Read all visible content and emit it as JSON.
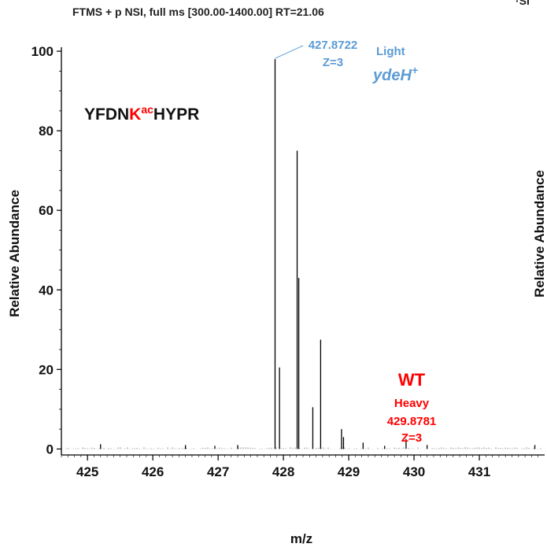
{
  "header": {
    "scan_info": "FTMS + p NSI, full ms [300.00-1400.00] RT=21.06",
    "corner_fragment": "·SI"
  },
  "peptide": {
    "prefix": "YFDN",
    "mod_residue": "K",
    "mod_superscript": "ac",
    "suffix": "HYPR"
  },
  "annotations": {
    "light_mz": "427.8722",
    "light_charge": "Z=3",
    "light_label": "Light",
    "light_strain": "ydeH",
    "light_strain_sup": "+",
    "wt_label": "WT",
    "heavy_label": "Heavy",
    "heavy_mz": "429.8781",
    "heavy_charge": "Z=3"
  },
  "colors": {
    "light": "#5b9bd5",
    "heavy": "#ff0000",
    "peaks": "#000000",
    "text": "#111111"
  },
  "chart_data": {
    "type": "bar",
    "xlabel": "m/z",
    "ylabel": "Relative Abundance",
    "ylabel_right": "Relative Abundance",
    "xlim": [
      424.6,
      432.0
    ],
    "ylim": [
      -1.5,
      101
    ],
    "x_ticks": [
      425,
      426,
      427,
      428,
      429,
      430,
      431
    ],
    "y_ticks": [
      0,
      20,
      40,
      60,
      80,
      100
    ],
    "peaks": [
      {
        "mz": 425.2,
        "intensity": 1.2
      },
      {
        "mz": 426.5,
        "intensity": 1.0
      },
      {
        "mz": 426.95,
        "intensity": 0.8
      },
      {
        "mz": 427.3,
        "intensity": 1.0
      },
      {
        "mz": 427.872,
        "intensity": 98
      },
      {
        "mz": 427.94,
        "intensity": 20.5
      },
      {
        "mz": 428.21,
        "intensity": 75
      },
      {
        "mz": 428.235,
        "intensity": 43
      },
      {
        "mz": 428.45,
        "intensity": 10.5
      },
      {
        "mz": 428.57,
        "intensity": 27.5
      },
      {
        "mz": 428.89,
        "intensity": 5
      },
      {
        "mz": 428.92,
        "intensity": 3
      },
      {
        "mz": 429.22,
        "intensity": 1.6
      },
      {
        "mz": 429.55,
        "intensity": 0.8
      },
      {
        "mz": 429.878,
        "intensity": 2.5
      },
      {
        "mz": 430.2,
        "intensity": 1.0
      },
      {
        "mz": 431.85,
        "intensity": 1.0
      }
    ]
  }
}
